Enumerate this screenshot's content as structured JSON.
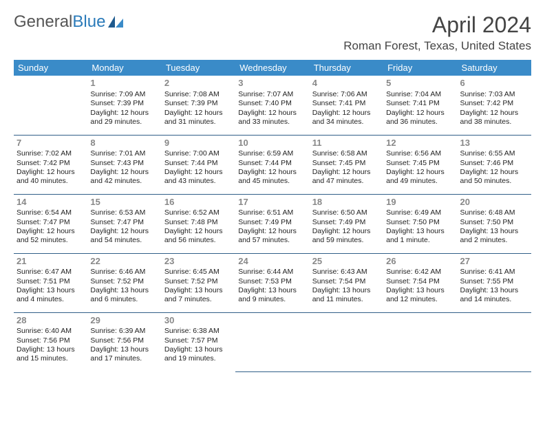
{
  "logo": {
    "text1": "General",
    "text2": "Blue"
  },
  "title": "April 2024",
  "location": "Roman Forest, Texas, United States",
  "colors": {
    "header_bg": "#3a8bc8",
    "header_text": "#ffffff",
    "border": "#2f5e87",
    "daynum": "#888888",
    "body_text": "#222222",
    "logo_gray": "#555555",
    "logo_blue": "#2a7ab9",
    "background": "#ffffff"
  },
  "weekdays": [
    "Sunday",
    "Monday",
    "Tuesday",
    "Wednesday",
    "Thursday",
    "Friday",
    "Saturday"
  ],
  "weeks": [
    [
      null,
      {
        "n": "1",
        "sr": "Sunrise: 7:09 AM",
        "ss": "Sunset: 7:39 PM",
        "dl1": "Daylight: 12 hours",
        "dl2": "and 29 minutes."
      },
      {
        "n": "2",
        "sr": "Sunrise: 7:08 AM",
        "ss": "Sunset: 7:39 PM",
        "dl1": "Daylight: 12 hours",
        "dl2": "and 31 minutes."
      },
      {
        "n": "3",
        "sr": "Sunrise: 7:07 AM",
        "ss": "Sunset: 7:40 PM",
        "dl1": "Daylight: 12 hours",
        "dl2": "and 33 minutes."
      },
      {
        "n": "4",
        "sr": "Sunrise: 7:06 AM",
        "ss": "Sunset: 7:41 PM",
        "dl1": "Daylight: 12 hours",
        "dl2": "and 34 minutes."
      },
      {
        "n": "5",
        "sr": "Sunrise: 7:04 AM",
        "ss": "Sunset: 7:41 PM",
        "dl1": "Daylight: 12 hours",
        "dl2": "and 36 minutes."
      },
      {
        "n": "6",
        "sr": "Sunrise: 7:03 AM",
        "ss": "Sunset: 7:42 PM",
        "dl1": "Daylight: 12 hours",
        "dl2": "and 38 minutes."
      }
    ],
    [
      {
        "n": "7",
        "sr": "Sunrise: 7:02 AM",
        "ss": "Sunset: 7:42 PM",
        "dl1": "Daylight: 12 hours",
        "dl2": "and 40 minutes."
      },
      {
        "n": "8",
        "sr": "Sunrise: 7:01 AM",
        "ss": "Sunset: 7:43 PM",
        "dl1": "Daylight: 12 hours",
        "dl2": "and 42 minutes."
      },
      {
        "n": "9",
        "sr": "Sunrise: 7:00 AM",
        "ss": "Sunset: 7:44 PM",
        "dl1": "Daylight: 12 hours",
        "dl2": "and 43 minutes."
      },
      {
        "n": "10",
        "sr": "Sunrise: 6:59 AM",
        "ss": "Sunset: 7:44 PM",
        "dl1": "Daylight: 12 hours",
        "dl2": "and 45 minutes."
      },
      {
        "n": "11",
        "sr": "Sunrise: 6:58 AM",
        "ss": "Sunset: 7:45 PM",
        "dl1": "Daylight: 12 hours",
        "dl2": "and 47 minutes."
      },
      {
        "n": "12",
        "sr": "Sunrise: 6:56 AM",
        "ss": "Sunset: 7:45 PM",
        "dl1": "Daylight: 12 hours",
        "dl2": "and 49 minutes."
      },
      {
        "n": "13",
        "sr": "Sunrise: 6:55 AM",
        "ss": "Sunset: 7:46 PM",
        "dl1": "Daylight: 12 hours",
        "dl2": "and 50 minutes."
      }
    ],
    [
      {
        "n": "14",
        "sr": "Sunrise: 6:54 AM",
        "ss": "Sunset: 7:47 PM",
        "dl1": "Daylight: 12 hours",
        "dl2": "and 52 minutes."
      },
      {
        "n": "15",
        "sr": "Sunrise: 6:53 AM",
        "ss": "Sunset: 7:47 PM",
        "dl1": "Daylight: 12 hours",
        "dl2": "and 54 minutes."
      },
      {
        "n": "16",
        "sr": "Sunrise: 6:52 AM",
        "ss": "Sunset: 7:48 PM",
        "dl1": "Daylight: 12 hours",
        "dl2": "and 56 minutes."
      },
      {
        "n": "17",
        "sr": "Sunrise: 6:51 AM",
        "ss": "Sunset: 7:49 PM",
        "dl1": "Daylight: 12 hours",
        "dl2": "and 57 minutes."
      },
      {
        "n": "18",
        "sr": "Sunrise: 6:50 AM",
        "ss": "Sunset: 7:49 PM",
        "dl1": "Daylight: 12 hours",
        "dl2": "and 59 minutes."
      },
      {
        "n": "19",
        "sr": "Sunrise: 6:49 AM",
        "ss": "Sunset: 7:50 PM",
        "dl1": "Daylight: 13 hours",
        "dl2": "and 1 minute."
      },
      {
        "n": "20",
        "sr": "Sunrise: 6:48 AM",
        "ss": "Sunset: 7:50 PM",
        "dl1": "Daylight: 13 hours",
        "dl2": "and 2 minutes."
      }
    ],
    [
      {
        "n": "21",
        "sr": "Sunrise: 6:47 AM",
        "ss": "Sunset: 7:51 PM",
        "dl1": "Daylight: 13 hours",
        "dl2": "and 4 minutes."
      },
      {
        "n": "22",
        "sr": "Sunrise: 6:46 AM",
        "ss": "Sunset: 7:52 PM",
        "dl1": "Daylight: 13 hours",
        "dl2": "and 6 minutes."
      },
      {
        "n": "23",
        "sr": "Sunrise: 6:45 AM",
        "ss": "Sunset: 7:52 PM",
        "dl1": "Daylight: 13 hours",
        "dl2": "and 7 minutes."
      },
      {
        "n": "24",
        "sr": "Sunrise: 6:44 AM",
        "ss": "Sunset: 7:53 PM",
        "dl1": "Daylight: 13 hours",
        "dl2": "and 9 minutes."
      },
      {
        "n": "25",
        "sr": "Sunrise: 6:43 AM",
        "ss": "Sunset: 7:54 PM",
        "dl1": "Daylight: 13 hours",
        "dl2": "and 11 minutes."
      },
      {
        "n": "26",
        "sr": "Sunrise: 6:42 AM",
        "ss": "Sunset: 7:54 PM",
        "dl1": "Daylight: 13 hours",
        "dl2": "and 12 minutes."
      },
      {
        "n": "27",
        "sr": "Sunrise: 6:41 AM",
        "ss": "Sunset: 7:55 PM",
        "dl1": "Daylight: 13 hours",
        "dl2": "and 14 minutes."
      }
    ],
    [
      {
        "n": "28",
        "sr": "Sunrise: 6:40 AM",
        "ss": "Sunset: 7:56 PM",
        "dl1": "Daylight: 13 hours",
        "dl2": "and 15 minutes."
      },
      {
        "n": "29",
        "sr": "Sunrise: 6:39 AM",
        "ss": "Sunset: 7:56 PM",
        "dl1": "Daylight: 13 hours",
        "dl2": "and 17 minutes."
      },
      {
        "n": "30",
        "sr": "Sunrise: 6:38 AM",
        "ss": "Sunset: 7:57 PM",
        "dl1": "Daylight: 13 hours",
        "dl2": "and 19 minutes."
      },
      null,
      null,
      null,
      null
    ]
  ]
}
